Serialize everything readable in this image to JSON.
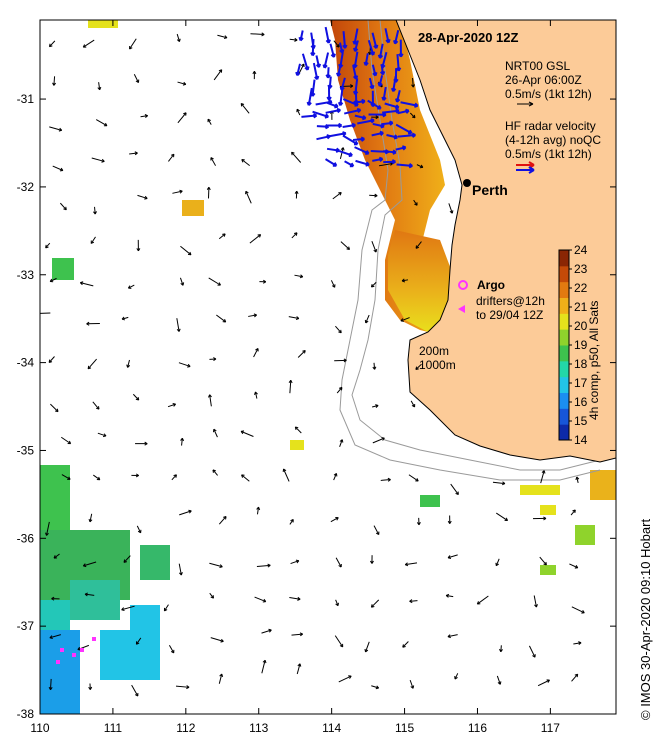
{
  "title": "28-Apr-2020 12Z",
  "gsl": {
    "line1": "NRT00 GSL",
    "line2": "26-Apr 06:00Z",
    "line3": "0.5m/s (1kt 12h)"
  },
  "hf": {
    "line1": "HF radar velocity",
    "line2": "(4-12h avg) noQC",
    "line3": "0.5m/s (1kt 12h)"
  },
  "city": "Perth",
  "argo": "Argo",
  "drifters": {
    "line1": "drifters@12h",
    "line2": "to 29/04 12Z"
  },
  "isobaths": [
    "200m",
    "1000m"
  ],
  "colorbar": {
    "label": "4h comp, p50, All Sats",
    "min": 14,
    "max": 24,
    "ticks": [
      "14",
      "15",
      "16",
      "17",
      "18",
      "19",
      "20",
      "21",
      "22",
      "23",
      "24"
    ],
    "colors": [
      "#0d2aa8",
      "#1756d8",
      "#1b8ef0",
      "#22c4e6",
      "#23d7a8",
      "#3ec24e",
      "#8fd32c",
      "#e5e21c",
      "#f0b019",
      "#e37a10",
      "#c44a08",
      "#8a2604"
    ]
  },
  "xaxis": {
    "ticks": [
      "110",
      "111",
      "112",
      "113",
      "114",
      "115",
      "116",
      "117"
    ],
    "range": [
      110,
      117.9
    ]
  },
  "yaxis": {
    "ticks": [
      "-31",
      "-32",
      "-33",
      "-34",
      "-35",
      "-36",
      "-37",
      "-38"
    ],
    "range": [
      -38,
      -30.1
    ]
  },
  "colors": {
    "land": "#fccb98",
    "coast": "#000000",
    "gsl_arrow": "#000000",
    "hf_arrow": "#1010e0",
    "hf_arrow_alt": "#e01010",
    "argo": "#ff33ff",
    "drifter": "#ff33ff",
    "isobath": "#9a9a9a"
  },
  "credit": "© IMOS 30-Apr-2020 09:10 Hobart"
}
